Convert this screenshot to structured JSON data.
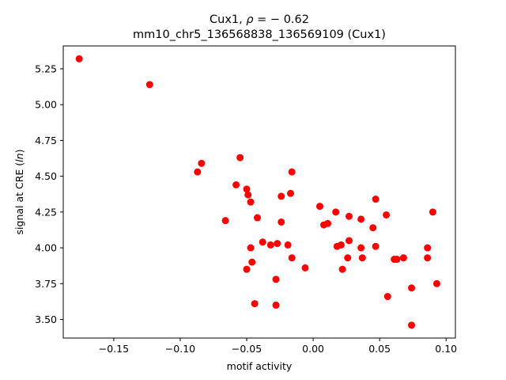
{
  "chart_data": {
    "type": "scatter",
    "title_prefix": "Cux1, ",
    "title_rho": "ρ",
    "title_value": " = − 0.62",
    "subtitle": "mm10_chr5_136568838_136569109 (Cux1)",
    "xlabel": "motif activity",
    "ylabel_prefix": "signal at CRE (",
    "ylabel_italic": "ln",
    "ylabel_suffix": ")",
    "xlim": [
      -0.188,
      0.107
    ],
    "ylim": [
      3.37,
      5.41
    ],
    "grid": false,
    "marker_color": "#ff0000",
    "xticks": [
      -0.15,
      -0.1,
      -0.05,
      0.0,
      0.05,
      0.1
    ],
    "xtick_labels": [
      "−0.15",
      "−0.10",
      "−0.05",
      "0.00",
      "0.05",
      "0.10"
    ],
    "yticks": [
      3.5,
      3.75,
      4.0,
      4.25,
      4.5,
      4.75,
      5.0,
      5.25
    ],
    "ytick_labels": [
      "3.50",
      "3.75",
      "4.00",
      "4.25",
      "4.50",
      "4.75",
      "5.00",
      "5.25"
    ],
    "points": [
      [
        -0.176,
        5.32
      ],
      [
        -0.123,
        5.14
      ],
      [
        -0.084,
        4.59
      ],
      [
        -0.087,
        4.53
      ],
      [
        -0.066,
        4.19
      ],
      [
        -0.055,
        4.63
      ],
      [
        -0.058,
        4.44
      ],
      [
        -0.05,
        4.41
      ],
      [
        -0.049,
        4.37
      ],
      [
        -0.047,
        4.32
      ],
      [
        -0.042,
        4.21
      ],
      [
        -0.047,
        4.0
      ],
      [
        -0.046,
        3.9
      ],
      [
        -0.038,
        4.04
      ],
      [
        -0.05,
        3.85
      ],
      [
        -0.044,
        3.61
      ],
      [
        -0.032,
        4.02
      ],
      [
        -0.027,
        4.03
      ],
      [
        -0.024,
        4.36
      ],
      [
        -0.024,
        4.18
      ],
      [
        -0.017,
        4.38
      ],
      [
        -0.016,
        4.53
      ],
      [
        -0.019,
        4.02
      ],
      [
        -0.016,
        3.93
      ],
      [
        -0.028,
        3.78
      ],
      [
        -0.028,
        3.6
      ],
      [
        -0.006,
        3.86
      ],
      [
        0.005,
        4.29
      ],
      [
        0.008,
        4.16
      ],
      [
        0.011,
        4.17
      ],
      [
        0.017,
        4.25
      ],
      [
        0.018,
        4.01
      ],
      [
        0.021,
        4.02
      ],
      [
        0.022,
        3.85
      ],
      [
        0.026,
        3.93
      ],
      [
        0.027,
        4.22
      ],
      [
        0.027,
        4.05
      ],
      [
        0.036,
        4.2
      ],
      [
        0.036,
        4.0
      ],
      [
        0.037,
        3.93
      ],
      [
        0.045,
        4.14
      ],
      [
        0.047,
        4.34
      ],
      [
        0.047,
        4.01
      ],
      [
        0.055,
        4.23
      ],
      [
        0.056,
        3.66
      ],
      [
        0.061,
        3.92
      ],
      [
        0.063,
        3.92
      ],
      [
        0.068,
        3.93
      ],
      [
        0.074,
        3.72
      ],
      [
        0.074,
        3.46
      ],
      [
        0.086,
        4.0
      ],
      [
        0.086,
        3.93
      ],
      [
        0.09,
        4.25
      ],
      [
        0.093,
        3.75
      ]
    ]
  }
}
